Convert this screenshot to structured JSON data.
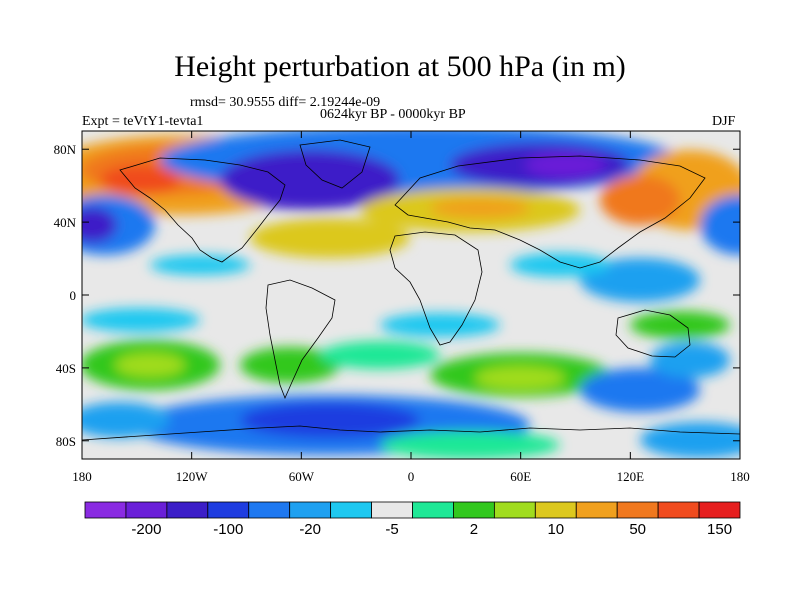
{
  "title": "Height perturbation at 500 hPa (in m)",
  "stats": "rmsd= 30.9555 diff= 2.19244e-09",
  "period": "0624kyr BP - 0000kyr BP",
  "experiment": "Expt = teVtY1-tevta1",
  "season": "DJF",
  "x_ticks": [
    "180",
    "120W",
    "60W",
    "0",
    "60E",
    "120E",
    "180"
  ],
  "y_ticks": [
    "80N",
    "40N",
    "0",
    "40S",
    "80S"
  ],
  "colorbar": {
    "colors": [
      "#8a2be2",
      "#6a1fd8",
      "#3c1ec8",
      "#1e3ce0",
      "#1e78f0",
      "#1ea0f0",
      "#1ec8f0",
      "#e8e8e8",
      "#1ee896",
      "#32c81e",
      "#a0dc1e",
      "#dcc81e",
      "#f0a01e",
      "#f0781e",
      "#f04b1e",
      "#e61e1e"
    ],
    "labels": [
      "-200",
      "-100",
      "-20",
      "-5",
      "2",
      "10",
      "50",
      "150"
    ]
  }
}
